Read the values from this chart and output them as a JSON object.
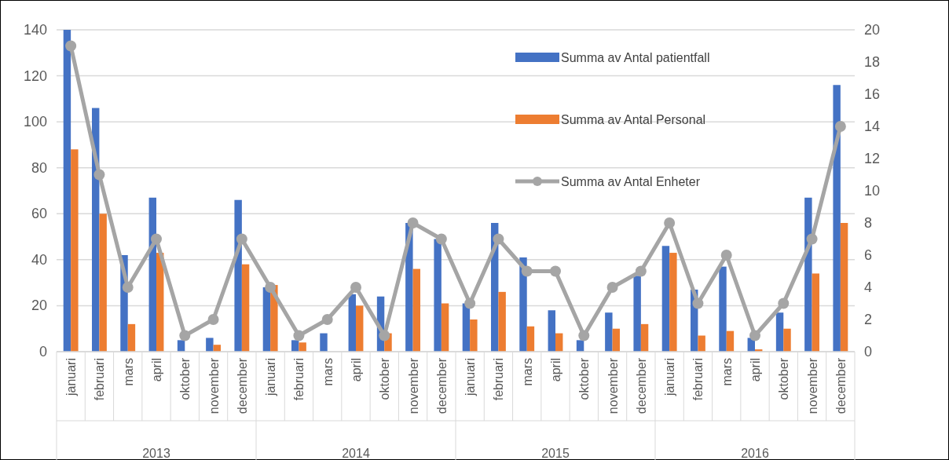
{
  "chart_data": {
    "type": "bar",
    "categories": [
      "januari",
      "februari",
      "mars",
      "april",
      "oktober",
      "november",
      "december",
      "januari",
      "februari",
      "mars",
      "april",
      "oktober",
      "november",
      "december",
      "januari",
      "februari",
      "mars",
      "april",
      "oktober",
      "november",
      "december",
      "januari",
      "februari",
      "mars",
      "april",
      "oktober",
      "november",
      "december"
    ],
    "annotations": [
      "2013",
      "2014",
      "2015",
      "2016"
    ],
    "series": [
      {
        "name": "Summa av Antal patientfall",
        "color": "#4472c4",
        "values": [
          140,
          106,
          42,
          67,
          5,
          6,
          66,
          28,
          5,
          8,
          25,
          24,
          56,
          49,
          21,
          56,
          41,
          18,
          5,
          17,
          33,
          46,
          27,
          37,
          6,
          17,
          67,
          116
        ]
      },
      {
        "name": "Summa av Antal Personal",
        "color": "#ed7d31",
        "values": [
          88,
          60,
          12,
          43,
          0,
          3,
          38,
          29,
          4,
          0,
          20,
          8,
          36,
          21,
          14,
          26,
          11,
          8,
          0,
          10,
          12,
          43,
          7,
          9,
          1,
          10,
          34,
          56
        ]
      },
      {
        "name": "Summa av Antal Enheter",
        "type": "line",
        "axis": "y2",
        "color": "#a5a5a5",
        "marker": "circle",
        "values": [
          19,
          11,
          4,
          7,
          1,
          2,
          7,
          4,
          1,
          2,
          4,
          1,
          8,
          7,
          3,
          7,
          5,
          5,
          1,
          4,
          5,
          8,
          3,
          6,
          1,
          3,
          7,
          14
        ]
      }
    ],
    "ylim": [
      0,
      140
    ],
    "yticks": [
      0,
      20,
      40,
      60,
      80,
      100,
      120,
      140
    ],
    "y2lim": [
      0,
      20
    ],
    "y2ticks": [
      0,
      2,
      4,
      6,
      8,
      10,
      12,
      14,
      16,
      18,
      20
    ],
    "grid": "y",
    "legend": "top right"
  }
}
